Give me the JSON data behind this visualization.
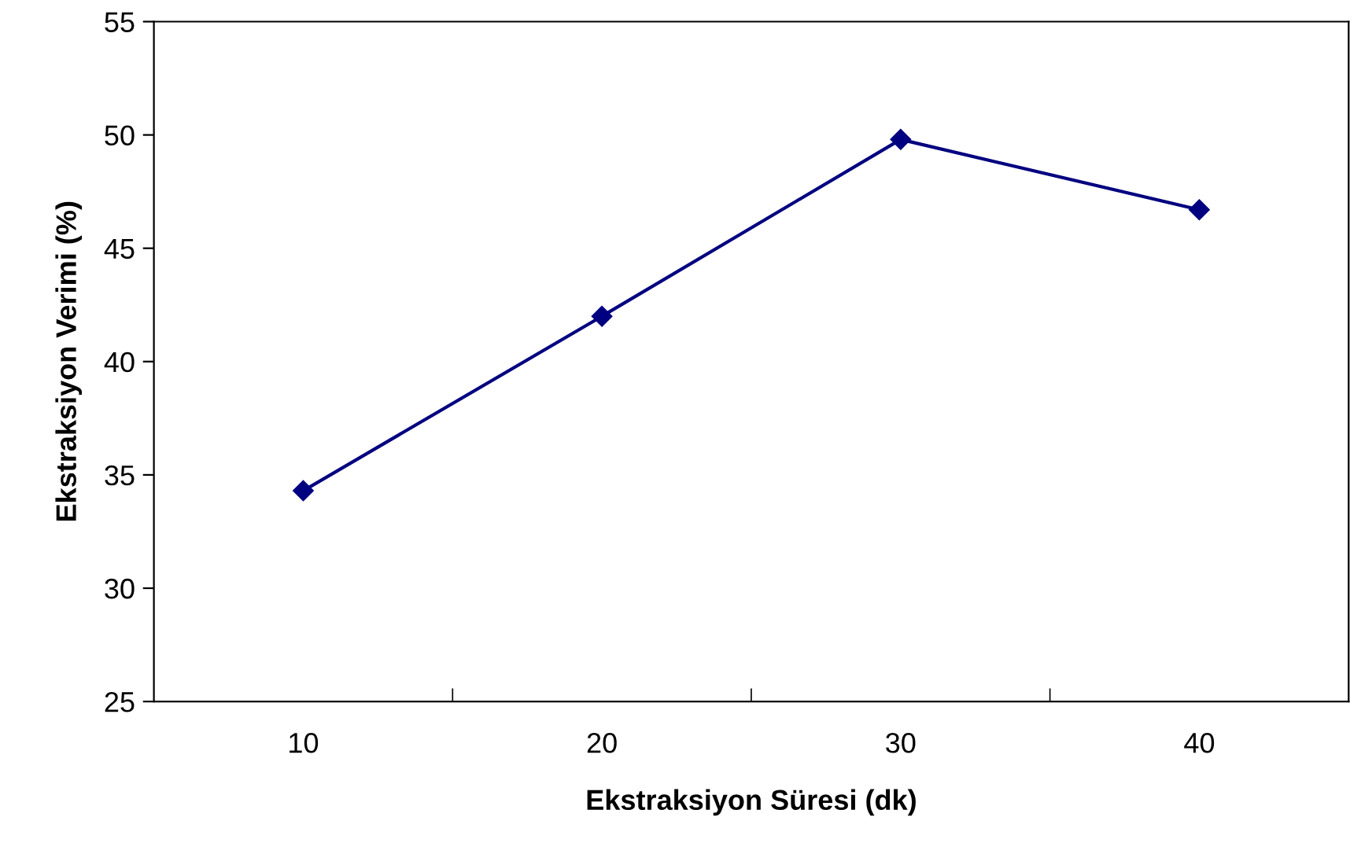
{
  "chart_data": {
    "type": "line",
    "xlabel": "Ekstraksiyon Süresi (dk)",
    "ylabel": "Ekstraksiyon Verimi (%)",
    "categories": [
      "10",
      "20",
      "30",
      "40"
    ],
    "series": [
      {
        "color": "#000080",
        "values": [
          34.3,
          42.0,
          49.8,
          46.7
        ]
      }
    ],
    "ylim": [
      25,
      55
    ],
    "yticks": [
      25,
      30,
      35,
      40,
      45,
      50,
      55
    ],
    "marker": "diamond",
    "line_style": "solid"
  }
}
